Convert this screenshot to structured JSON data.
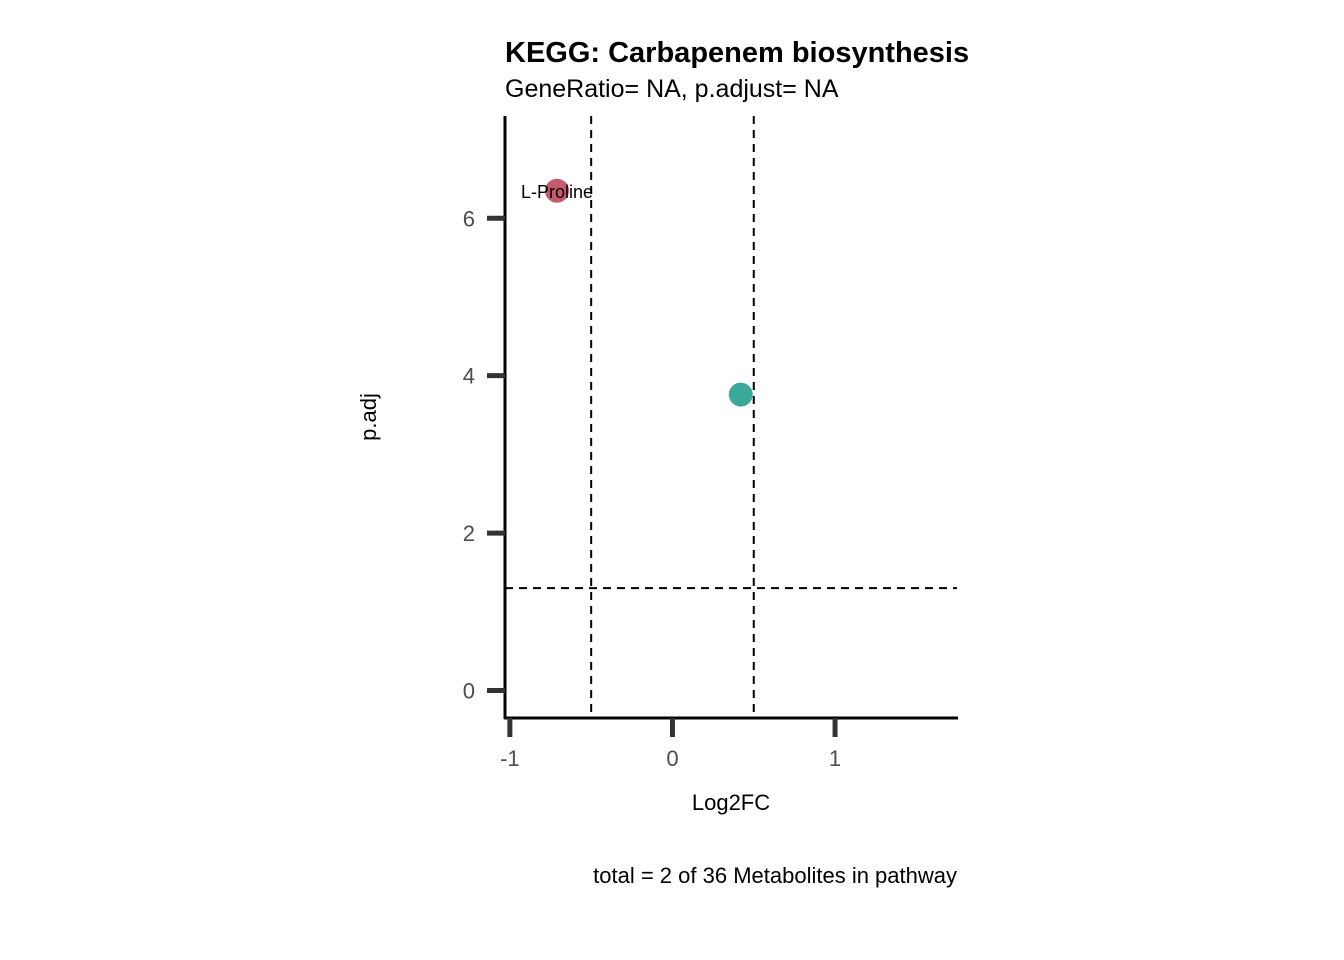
{
  "chart_data": {
    "type": "scatter",
    "title": "KEGG: Carbapenem biosynthesis",
    "subtitle": "GeneRatio= NA, p.adjust= NA",
    "xlabel": "Log2FC",
    "ylabel": "p.adj",
    "caption": "total = 2 of 36 Metabolites in pathway",
    "xlim": [
      -1.03,
      1.75
    ],
    "ylim": [
      -0.35,
      7.3
    ],
    "x_ticks": [
      -1,
      0,
      1
    ],
    "x_tick_labels": [
      "-1",
      "0",
      "1"
    ],
    "y_ticks": [
      0,
      2,
      4,
      6
    ],
    "y_tick_labels": [
      "0",
      "2",
      "4",
      "6"
    ],
    "grid": false,
    "legend": "none",
    "reference_lines": {
      "vertical": [
        -0.5,
        0.5
      ],
      "horizontal": [
        1.3
      ]
    },
    "points": [
      {
        "x": -0.71,
        "y": 6.35,
        "label": "L-Proline",
        "color": "#c45b6c"
      },
      {
        "x": 0.42,
        "y": 3.76,
        "label": "",
        "color": "#3aa99a"
      }
    ]
  }
}
